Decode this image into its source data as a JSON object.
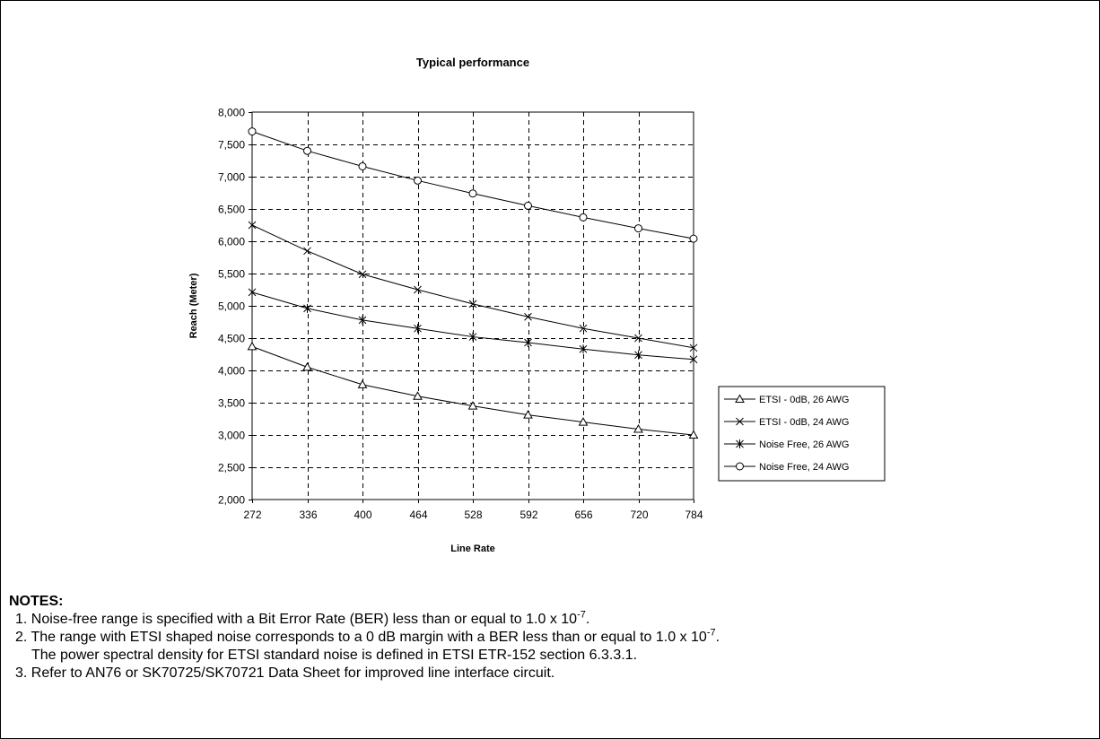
{
  "chart_data": {
    "type": "line",
    "title": "Typical performance",
    "xlabel": "Line Rate",
    "ylabel": "Reach (Meter)",
    "x": [
      272,
      336,
      400,
      464,
      528,
      592,
      656,
      720,
      784
    ],
    "x_tick_labels": [
      "272",
      "336",
      "400",
      "464",
      "528",
      "592",
      "656",
      "720",
      "784"
    ],
    "ylim": [
      2000,
      8000
    ],
    "y_ticks": [
      2000,
      2500,
      3000,
      3500,
      4000,
      4500,
      5000,
      5500,
      6000,
      6500,
      7000,
      7500,
      8000
    ],
    "y_tick_labels": [
      "2,000",
      "2,500",
      "3,000",
      "3,500",
      "4,000",
      "4,500",
      "5,000",
      "5,500",
      "6,000",
      "6,500",
      "7,000",
      "7,500",
      "8,000"
    ],
    "grid": true,
    "legend_position": "right",
    "series": [
      {
        "name": "ETSI - 0dB, 26 AWG",
        "marker": "triangle",
        "values": [
          4370,
          4050,
          3780,
          3600,
          3450,
          3310,
          3200,
          3090,
          3000
        ]
      },
      {
        "name": "ETSI - 0dB, 24 AWG",
        "marker": "x",
        "values": [
          6250,
          5850,
          5490,
          5250,
          5030,
          4830,
          4650,
          4500,
          4350
        ]
      },
      {
        "name": "Noise Free, 26 AWG",
        "marker": "star",
        "values": [
          5210,
          4960,
          4780,
          4650,
          4520,
          4430,
          4330,
          4240,
          4170
        ]
      },
      {
        "name": "Noise Free, 24 AWG",
        "marker": "circle",
        "values": [
          7700,
          7400,
          7160,
          6940,
          6740,
          6550,
          6370,
          6200,
          6040
        ]
      }
    ]
  },
  "notes": {
    "heading": "NOTES:",
    "items": [
      {
        "text": "1. Noise-free range is specified with a Bit Error Rate (BER) less than or equal to 1.0 x 10",
        "sup": "-7",
        "end": "."
      },
      {
        "text": "2. The range with ETSI shaped noise corresponds to a 0 dB margin with a BER less than or equal to 1.0 x 10",
        "sup": "-7",
        "end": "."
      },
      {
        "text": "The power spectral density for ETSI standard noise is defined in ETSI ETR-152 section 6.3.3.1."
      },
      {
        "text": "3. Refer to AN76 or SK70725/SK70721 Data Sheet for improved line interface circuit."
      }
    ]
  }
}
